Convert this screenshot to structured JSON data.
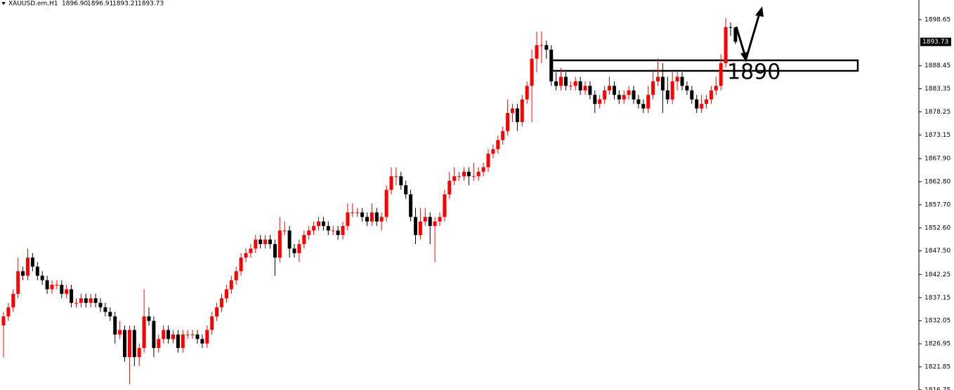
{
  "chart_data": {
    "type": "candlestick",
    "header": {
      "symbol": "XAUUSD.em,H1",
      "quote": [
        "1896.90",
        "1896.91",
        "1893.21",
        "1893.73"
      ]
    },
    "annotation": "1890",
    "up_color": "#ff0000",
    "down_color": "#000000",
    "ylim": [
      1816.72,
      1902.99
    ],
    "yticks": [
      1898.65,
      1888.45,
      1883.35,
      1878.25,
      1873.15,
      {
        "value": 1867.9,
        "label": "1867.90"
      },
      {
        "value": 1862.8,
        "label": "1862.80"
      },
      {
        "value": 1857.7,
        "label": "1857.70"
      },
      {
        "value": 1852.6,
        "label": "1852.60"
      },
      {
        "value": 1847.5,
        "label": "1847.50"
      },
      1842.25,
      1837.15,
      1832.05,
      1826.95,
      1821.85,
      1816.75
    ],
    "ohlc": [
      [
        1831,
        1834,
        1824,
        1833
      ],
      [
        1833,
        1836,
        1832,
        1835
      ],
      [
        1835,
        1839,
        1834,
        1838
      ],
      [
        1838,
        1846,
        1837,
        1843
      ],
      [
        1843,
        1844,
        1841,
        1842
      ],
      [
        1842,
        1848,
        1841,
        1846
      ],
      [
        1846,
        1847,
        1843,
        1844
      ],
      [
        1844,
        1845,
        1841,
        1842
      ],
      [
        1842,
        1843,
        1840,
        1841
      ],
      [
        1841,
        1842,
        1838,
        1839
      ],
      [
        1839,
        1841,
        1838,
        1840
      ],
      [
        1840,
        1841,
        1839,
        1840
      ],
      [
        1840,
        1841,
        1837,
        1838
      ],
      [
        1838,
        1840,
        1837,
        1839
      ],
      [
        1839,
        1840,
        1835,
        1836
      ],
      [
        1836,
        1837,
        1835,
        1836
      ],
      [
        1836,
        1838,
        1835,
        1837
      ],
      [
        1837,
        1838,
        1835,
        1836
      ],
      [
        1836,
        1838,
        1835,
        1837
      ],
      [
        1837,
        1838,
        1835,
        1836
      ],
      [
        1836,
        1837,
        1834,
        1835
      ],
      [
        1835,
        1836,
        1833,
        1834
      ],
      [
        1834,
        1835,
        1832,
        1833
      ],
      [
        1833,
        1834,
        1827,
        1829
      ],
      [
        1829,
        1832,
        1828,
        1830
      ],
      [
        1830,
        1831,
        1823,
        1824
      ],
      [
        1824,
        1831,
        1818,
        1830
      ],
      [
        1830,
        1831,
        1822,
        1824
      ],
      [
        1824,
        1827,
        1822,
        1826
      ],
      [
        1826,
        1839,
        1825,
        1833
      ],
      [
        1833,
        1835,
        1831,
        1832
      ],
      [
        1832,
        1833,
        1824,
        1826
      ],
      [
        1826,
        1829,
        1825,
        1828
      ],
      [
        1828,
        1831,
        1827,
        1830
      ],
      [
        1830,
        1831,
        1827,
        1828
      ],
      [
        1828,
        1830,
        1827,
        1829
      ],
      [
        1829,
        1830,
        1825,
        1826
      ],
      [
        1826,
        1830,
        1825,
        1829
      ],
      [
        1829,
        1830,
        1828,
        1829
      ],
      [
        1829,
        1830,
        1828,
        1829
      ],
      [
        1829,
        1830,
        1827,
        1828
      ],
      [
        1828,
        1829,
        1826,
        1827
      ],
      [
        1827,
        1831,
        1826,
        1830
      ],
      [
        1830,
        1834,
        1829,
        1833
      ],
      [
        1833,
        1836,
        1832,
        1835
      ],
      [
        1835,
        1838,
        1834,
        1837
      ],
      [
        1837,
        1840,
        1836,
        1839
      ],
      [
        1839,
        1842,
        1838,
        1841
      ],
      [
        1841,
        1844,
        1840,
        1843
      ],
      [
        1843,
        1847,
        1842,
        1846
      ],
      [
        1846,
        1848,
        1845,
        1847
      ],
      [
        1847,
        1849,
        1846,
        1848
      ],
      [
        1848,
        1851,
        1847,
        1850
      ],
      [
        1850,
        1851,
        1848,
        1849
      ],
      [
        1849,
        1851,
        1848,
        1850
      ],
      [
        1850,
        1851,
        1848,
        1849
      ],
      [
        1849,
        1850,
        1842,
        1846
      ],
      [
        1846,
        1855,
        1845,
        1852
      ],
      [
        1852,
        1854,
        1851,
        1852
      ],
      [
        1852,
        1853,
        1846,
        1848
      ],
      [
        1848,
        1849,
        1846,
        1847
      ],
      [
        1847,
        1850,
        1845,
        1849
      ],
      [
        1849,
        1852,
        1848,
        1851
      ],
      [
        1851,
        1853,
        1850,
        1852
      ],
      [
        1852,
        1854,
        1851,
        1853
      ],
      [
        1853,
        1855,
        1852,
        1854
      ],
      [
        1854,
        1855,
        1852,
        1853
      ],
      [
        1853,
        1854,
        1851,
        1852
      ],
      [
        1852,
        1853,
        1851,
        1852
      ],
      [
        1852,
        1853,
        1850,
        1851
      ],
      [
        1851,
        1854,
        1850,
        1853
      ],
      [
        1853,
        1858,
        1852,
        1856
      ],
      [
        1856,
        1858,
        1855,
        1856
      ],
      [
        1856,
        1857,
        1855,
        1856
      ],
      [
        1856,
        1857,
        1854,
        1855
      ],
      [
        1855,
        1856,
        1853,
        1854
      ],
      [
        1854,
        1858,
        1853,
        1856
      ],
      [
        1856,
        1857,
        1853,
        1854
      ],
      [
        1854,
        1856,
        1852,
        1855
      ],
      [
        1855,
        1862,
        1854,
        1861
      ],
      [
        1861,
        1866,
        1860,
        1864
      ],
      [
        1864,
        1866,
        1862,
        1864
      ],
      [
        1864,
        1865,
        1861,
        1862
      ],
      [
        1862,
        1863,
        1859,
        1860
      ],
      [
        1860,
        1861,
        1854,
        1855
      ],
      [
        1855,
        1857,
        1849,
        1851
      ],
      [
        1851,
        1857,
        1850,
        1854
      ],
      [
        1854,
        1857,
        1853,
        1855
      ],
      [
        1855,
        1856,
        1849,
        1853
      ],
      [
        1853,
        1855,
        1845,
        1854
      ],
      [
        1854,
        1856,
        1853,
        1855
      ],
      [
        1855,
        1861,
        1854,
        1860
      ],
      [
        1860,
        1865,
        1859,
        1863
      ],
      [
        1863,
        1866,
        1862,
        1864
      ],
      [
        1864,
        1865,
        1863,
        1864
      ],
      [
        1864,
        1866,
        1863,
        1865
      ],
      [
        1865,
        1866,
        1862,
        1864
      ],
      [
        1864,
        1867,
        1863,
        1864
      ],
      [
        1864,
        1866,
        1863,
        1865
      ],
      [
        1865,
        1867,
        1864,
        1866
      ],
      [
        1866,
        1870,
        1865,
        1869
      ],
      [
        1869,
        1871,
        1868,
        1870
      ],
      [
        1870,
        1873,
        1869,
        1872
      ],
      [
        1872,
        1875,
        1871,
        1874
      ],
      [
        1874,
        1881,
        1873,
        1878
      ],
      [
        1878,
        1880,
        1876,
        1879
      ],
      [
        1879,
        1880,
        1874,
        1876
      ],
      [
        1876,
        1882,
        1875,
        1881
      ],
      [
        1881,
        1885,
        1880,
        1884
      ],
      [
        1884,
        1892,
        1876,
        1890
      ],
      [
        1890,
        1896,
        1887,
        1893
      ],
      [
        1893,
        1896,
        1889,
        1893
      ],
      [
        1893,
        1894,
        1890,
        1892
      ],
      [
        1892,
        1893,
        1884,
        1885
      ],
      [
        1885,
        1887,
        1883,
        1884
      ],
      [
        1884,
        1888,
        1883,
        1886
      ],
      [
        1886,
        1887,
        1883,
        1884
      ],
      [
        1884,
        1885,
        1883,
        1884
      ],
      [
        1884,
        1886,
        1883,
        1885
      ],
      [
        1885,
        1886,
        1882,
        1883
      ],
      [
        1883,
        1885,
        1882,
        1884
      ],
      [
        1884,
        1885,
        1881,
        1882
      ],
      [
        1882,
        1883,
        1878,
        1880
      ],
      [
        1880,
        1882,
        1879,
        1881
      ],
      [
        1881,
        1884,
        1880,
        1883
      ],
      [
        1883,
        1886,
        1882,
        1884
      ],
      [
        1884,
        1885,
        1881,
        1882
      ],
      [
        1882,
        1883,
        1880,
        1881
      ],
      [
        1881,
        1883,
        1880,
        1882
      ],
      [
        1882,
        1884,
        1881,
        1883
      ],
      [
        1883,
        1884,
        1880,
        1881
      ],
      [
        1881,
        1882,
        1879,
        1880
      ],
      [
        1880,
        1881,
        1878,
        1879
      ],
      [
        1879,
        1884,
        1878,
        1882
      ],
      [
        1882,
        1887,
        1881,
        1885
      ],
      [
        1885,
        1890,
        1884,
        1886
      ],
      [
        1886,
        1889,
        1878,
        1883
      ],
      [
        1883,
        1886,
        1880,
        1881
      ],
      [
        1881,
        1887,
        1880,
        1885
      ],
      [
        1885,
        1887,
        1883,
        1886
      ],
      [
        1886,
        1887,
        1883,
        1884
      ],
      [
        1884,
        1885,
        1882,
        1883
      ],
      [
        1883,
        1884,
        1880,
        1881
      ],
      [
        1881,
        1882,
        1878,
        1879
      ],
      [
        1879,
        1882,
        1878,
        1880
      ],
      [
        1880,
        1882,
        1879,
        1881
      ],
      [
        1881,
        1884,
        1880,
        1883
      ],
      [
        1883,
        1886,
        1882,
        1884
      ],
      [
        1884,
        1891,
        1883,
        1889
      ],
      [
        1889,
        1899,
        1888,
        1897
      ],
      [
        1897,
        1898,
        1895,
        1896.9
      ],
      [
        1896.9,
        1896.91,
        1893.21,
        1893.73
      ]
    ]
  }
}
